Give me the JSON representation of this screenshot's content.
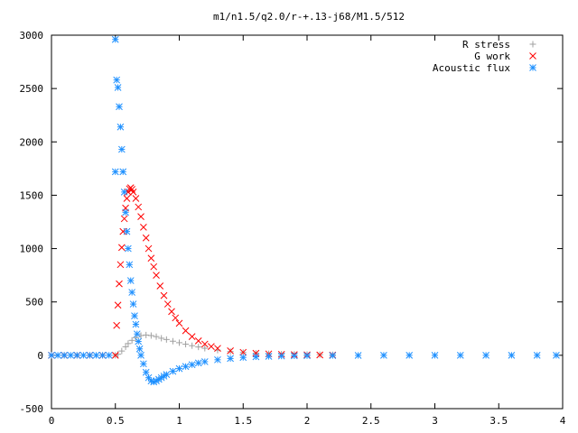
{
  "chart_data": {
    "type": "scatter",
    "title": "m1/n1.5/q2.0/r-+.13-j68/M1.5/512",
    "xlabel": "",
    "ylabel": "",
    "xlim": [
      0,
      4
    ],
    "ylim": [
      -500,
      3000
    ],
    "xticks": [
      0,
      0.5,
      1,
      1.5,
      2,
      2.5,
      3,
      3.5,
      4
    ],
    "xtick_labels": [
      "0",
      "0.5",
      "1",
      "1.5",
      "2",
      "2.5",
      "3",
      "3.5",
      "4"
    ],
    "yticks": [
      -500,
      0,
      500,
      1000,
      1500,
      2000,
      2500,
      3000
    ],
    "ytick_labels": [
      "-500",
      "0",
      "500",
      "1000",
      "1500",
      "2000",
      "2500",
      "3000"
    ],
    "grid": false,
    "legend_position": "top-right",
    "series": [
      {
        "name": "R stress",
        "marker": "plus",
        "color": "#a0a0a0",
        "x": [
          0.0,
          0.1,
          0.2,
          0.3,
          0.4,
          0.5,
          0.52,
          0.55,
          0.58,
          0.6,
          0.63,
          0.66,
          0.7,
          0.74,
          0.78,
          0.82,
          0.86,
          0.9,
          0.95,
          1.0,
          1.05,
          1.1,
          1.15,
          1.2,
          1.3,
          1.4,
          1.5,
          1.6,
          1.7,
          1.8,
          1.9,
          2.0,
          2.1,
          2.2
        ],
        "y": [
          0,
          0,
          0,
          0,
          0,
          0,
          10,
          40,
          80,
          110,
          140,
          165,
          185,
          190,
          185,
          175,
          160,
          148,
          132,
          118,
          104,
          90,
          78,
          66,
          48,
          35,
          26,
          19,
          14,
          11,
          9,
          7,
          6,
          5
        ]
      },
      {
        "name": "G work",
        "marker": "cross",
        "color": "#ff0000",
        "x": [
          0.0,
          0.1,
          0.2,
          0.3,
          0.4,
          0.5,
          0.51,
          0.52,
          0.53,
          0.54,
          0.55,
          0.56,
          0.57,
          0.58,
          0.59,
          0.6,
          0.61,
          0.62,
          0.63,
          0.64,
          0.66,
          0.68,
          0.7,
          0.72,
          0.74,
          0.76,
          0.78,
          0.8,
          0.82,
          0.85,
          0.88,
          0.91,
          0.94,
          0.97,
          1.0,
          1.05,
          1.1,
          1.15,
          1.2,
          1.25,
          1.3,
          1.4,
          1.5,
          1.6,
          1.7,
          1.8,
          1.9,
          2.0,
          2.1,
          2.2
        ],
        "y": [
          0,
          0,
          0,
          0,
          0,
          0,
          280,
          470,
          670,
          850,
          1010,
          1160,
          1280,
          1380,
          1470,
          1530,
          1560,
          1570,
          1555,
          1530,
          1470,
          1390,
          1300,
          1200,
          1100,
          1000,
          910,
          830,
          750,
          650,
          560,
          480,
          410,
          350,
          300,
          230,
          175,
          135,
          105,
          82,
          65,
          42,
          28,
          19,
          13,
          9,
          6,
          4,
          3,
          2
        ]
      },
      {
        "name": "Acoustic flux",
        "marker": "star",
        "color": "#1e90ff",
        "x": [
          0.0,
          0.05,
          0.1,
          0.15,
          0.2,
          0.25,
          0.3,
          0.35,
          0.4,
          0.45,
          0.5,
          0.5,
          0.51,
          0.52,
          0.53,
          0.54,
          0.55,
          0.56,
          0.57,
          0.58,
          0.59,
          0.6,
          0.61,
          0.62,
          0.63,
          0.64,
          0.65,
          0.66,
          0.67,
          0.68,
          0.69,
          0.7,
          0.72,
          0.74,
          0.76,
          0.78,
          0.8,
          0.82,
          0.84,
          0.86,
          0.88,
          0.9,
          0.95,
          1.0,
          1.05,
          1.1,
          1.15,
          1.2,
          1.3,
          1.4,
          1.5,
          1.6,
          1.7,
          1.8,
          1.9,
          2.0,
          2.2,
          2.4,
          2.6,
          2.8,
          3.0,
          3.2,
          3.4,
          3.6,
          3.8,
          3.95
        ],
        "y": [
          0,
          0,
          0,
          0,
          0,
          0,
          0,
          0,
          0,
          0,
          1720,
          2960,
          2580,
          2510,
          2330,
          2140,
          1930,
          1720,
          1530,
          1340,
          1160,
          1000,
          850,
          700,
          590,
          480,
          370,
          290,
          200,
          130,
          60,
          0,
          -80,
          -160,
          -210,
          -240,
          -250,
          -240,
          -225,
          -210,
          -195,
          -180,
          -150,
          -125,
          -105,
          -88,
          -72,
          -60,
          -42,
          -30,
          -20,
          -14,
          -10,
          -7,
          -5,
          -3,
          -2,
          -1,
          0,
          0,
          0,
          0,
          0,
          0,
          0,
          0
        ]
      }
    ]
  }
}
